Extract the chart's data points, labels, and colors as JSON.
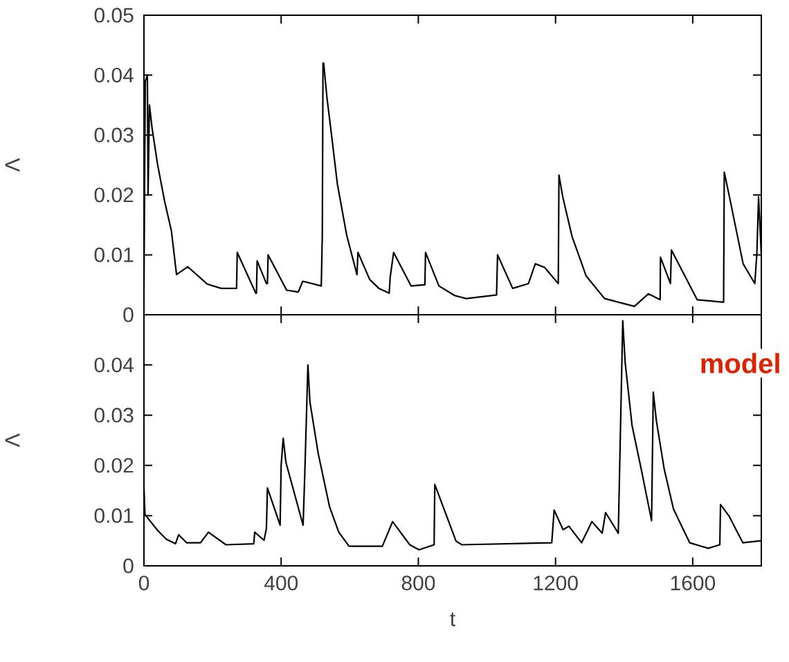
{
  "chart_data": [
    {
      "type": "line",
      "ylabel": "Λ",
      "x": [
        0,
        2,
        4,
        10,
        12,
        16,
        24,
        40,
        60,
        80,
        95,
        128,
        185,
        225,
        265,
        270,
        272,
        326,
        328,
        330,
        357,
        360,
        362,
        416,
        450,
        463,
        517,
        520,
        522,
        524,
        534,
        544,
        564,
        591,
        621,
        624,
        658,
        685,
        715,
        718,
        728,
        779,
        819,
        821,
        860,
        906,
        940,
        1028,
        1031,
        1075,
        1121,
        1141,
        1168,
        1208,
        1210,
        1221,
        1248,
        1289,
        1343,
        1430,
        1471,
        1505,
        1506,
        1535,
        1538,
        1613,
        1690,
        1692,
        1707,
        1747,
        1781,
        1787,
        1792,
        1800
      ],
      "series": [
        {
          "color": "#000000",
          "values": [
            0.004,
            0.023,
            0.039,
            0.04,
            0.02,
            0.035,
            0.031,
            0.025,
            0.019,
            0.014,
            0.0067,
            0.008,
            0.0051,
            0.0044,
            0.0044,
            0.0044,
            0.0104,
            0.0036,
            0.0036,
            0.009,
            0.0052,
            0.0052,
            0.01,
            0.0041,
            0.0038,
            0.0056,
            0.0048,
            0.0133,
            0.042,
            0.042,
            0.036,
            0.0314,
            0.0218,
            0.0133,
            0.0067,
            0.0104,
            0.0059,
            0.0044,
            0.0036,
            0.0063,
            0.0104,
            0.0048,
            0.005,
            0.0104,
            0.0048,
            0.0032,
            0.0027,
            0.0033,
            0.01,
            0.0044,
            0.0052,
            0.0085,
            0.0079,
            0.0052,
            0.0233,
            0.0197,
            0.0131,
            0.0065,
            0.0027,
            0.0014,
            0.0035,
            0.0025,
            0.0096,
            0.0052,
            0.0108,
            0.0025,
            0.0021,
            0.0238,
            0.0197,
            0.0085,
            0.0052,
            0.0102,
            0.0197,
            0.01
          ]
        }
      ],
      "xlim": [
        0,
        1800
      ],
      "ylim": [
        0,
        0.05
      ],
      "xticks": [
        0,
        400,
        800,
        1200,
        1600
      ],
      "yticks": [
        0,
        0.01,
        0.02,
        0.03,
        0.04,
        0.05
      ],
      "tick_labels": "y"
    },
    {
      "type": "line",
      "xlabel": "t",
      "ylabel": "Λ",
      "annotations": [
        "model"
      ],
      "x": [
        0,
        3,
        38,
        65,
        92,
        101,
        124,
        165,
        188,
        239,
        320,
        323,
        350,
        357,
        360,
        397,
        400,
        406,
        414,
        464,
        469,
        478,
        484,
        508,
        541,
        568,
        598,
        695,
        725,
        775,
        802,
        846,
        848,
        910,
        927,
        1189,
        1196,
        1222,
        1239,
        1276,
        1306,
        1336,
        1346,
        1383,
        1396,
        1403,
        1423,
        1450,
        1480,
        1485,
        1494,
        1517,
        1544,
        1591,
        1645,
        1679,
        1681,
        1706,
        1746,
        1787,
        1800
      ],
      "series": [
        {
          "color": "#000000",
          "values": [
            0.0155,
            0.0102,
            0.0072,
            0.0053,
            0.0044,
            0.0062,
            0.0046,
            0.0046,
            0.0067,
            0.0042,
            0.0044,
            0.0067,
            0.0051,
            0.0074,
            0.0155,
            0.0081,
            0.0201,
            0.0254,
            0.0206,
            0.0081,
            0.0185,
            0.04,
            0.0326,
            0.0224,
            0.0118,
            0.0067,
            0.0039,
            0.0039,
            0.0088,
            0.0042,
            0.0032,
            0.0042,
            0.0162,
            0.0049,
            0.0042,
            0.0046,
            0.0111,
            0.0072,
            0.0079,
            0.0046,
            0.0088,
            0.0065,
            0.0106,
            0.0065,
            0.0488,
            0.0405,
            0.028,
            0.0192,
            0.009,
            0.0346,
            0.0289,
            0.0192,
            0.0113,
            0.0046,
            0.0035,
            0.0042,
            0.0122,
            0.0099,
            0.0046,
            0.0049,
            0.005
          ]
        }
      ],
      "xlim": [
        0,
        1800
      ],
      "ylim": [
        0,
        0.05
      ],
      "xticks": [
        0,
        400,
        800,
        1200,
        1600
      ],
      "yticks": [
        0,
        0.01,
        0.02,
        0.03,
        0.04
      ]
    }
  ]
}
